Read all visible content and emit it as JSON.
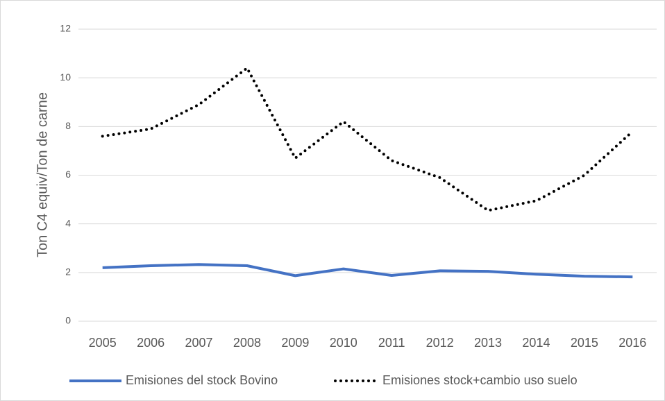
{
  "chart_data": {
    "type": "line",
    "y_label": "Ton C4 equiv/Ton de carne",
    "categories": [
      "2005",
      "2006",
      "2007",
      "2008",
      "2009",
      "2010",
      "2011",
      "2012",
      "2013",
      "2014",
      "2015",
      "2016"
    ],
    "series": [
      {
        "name": "Emisiones del stock Bovino",
        "color": "#4472c4",
        "style": "solid",
        "values": [
          2.2,
          2.28,
          2.33,
          2.28,
          1.87,
          2.15,
          1.88,
          2.07,
          2.05,
          1.93,
          1.85,
          1.82
        ]
      },
      {
        "name": "Emisiones stock+cambio uso suelo",
        "color": "#000000",
        "style": "dotted",
        "values": [
          7.6,
          7.9,
          8.9,
          10.4,
          6.7,
          8.2,
          6.6,
          5.9,
          4.55,
          4.95,
          6.0,
          7.8
        ]
      }
    ],
    "ylim": [
      0,
      12
    ],
    "yticks": [
      0,
      2,
      4,
      6,
      8,
      10,
      12
    ],
    "grid": true,
    "legend": "bottom"
  }
}
